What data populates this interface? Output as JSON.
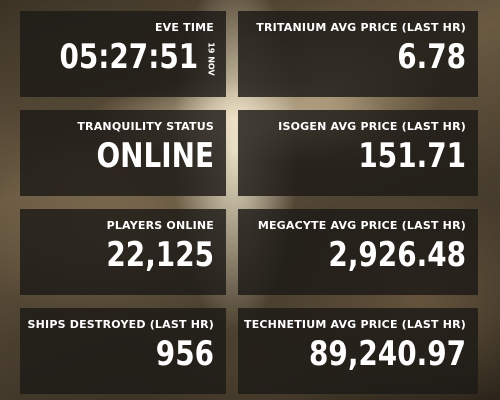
{
  "tiles": {
    "eve_time": {
      "label": "EVE TIME",
      "value": "05:27:51",
      "date": "19 NOV"
    },
    "tranquility": {
      "label": "TRANQUILITY STATUS",
      "value": "ONLINE"
    },
    "players": {
      "label": "PLAYERS ONLINE",
      "value": "22,125"
    },
    "ships": {
      "label": "SHIPS DESTROYED (LAST HR)",
      "value": "956"
    },
    "tritanium": {
      "label": "TRITANIUM AVG PRICE (LAST HR)",
      "value": "6.78"
    },
    "isogen": {
      "label": "ISOGEN AVG PRICE (LAST HR)",
      "value": "151.71"
    },
    "megacyte": {
      "label": "MEGACYTE AVG PRICE (LAST HR)",
      "value": "2,926.48"
    },
    "technetium": {
      "label": "TECHNETIUM AVG PRICE (LAST HR)",
      "value": "89,240.97"
    }
  }
}
